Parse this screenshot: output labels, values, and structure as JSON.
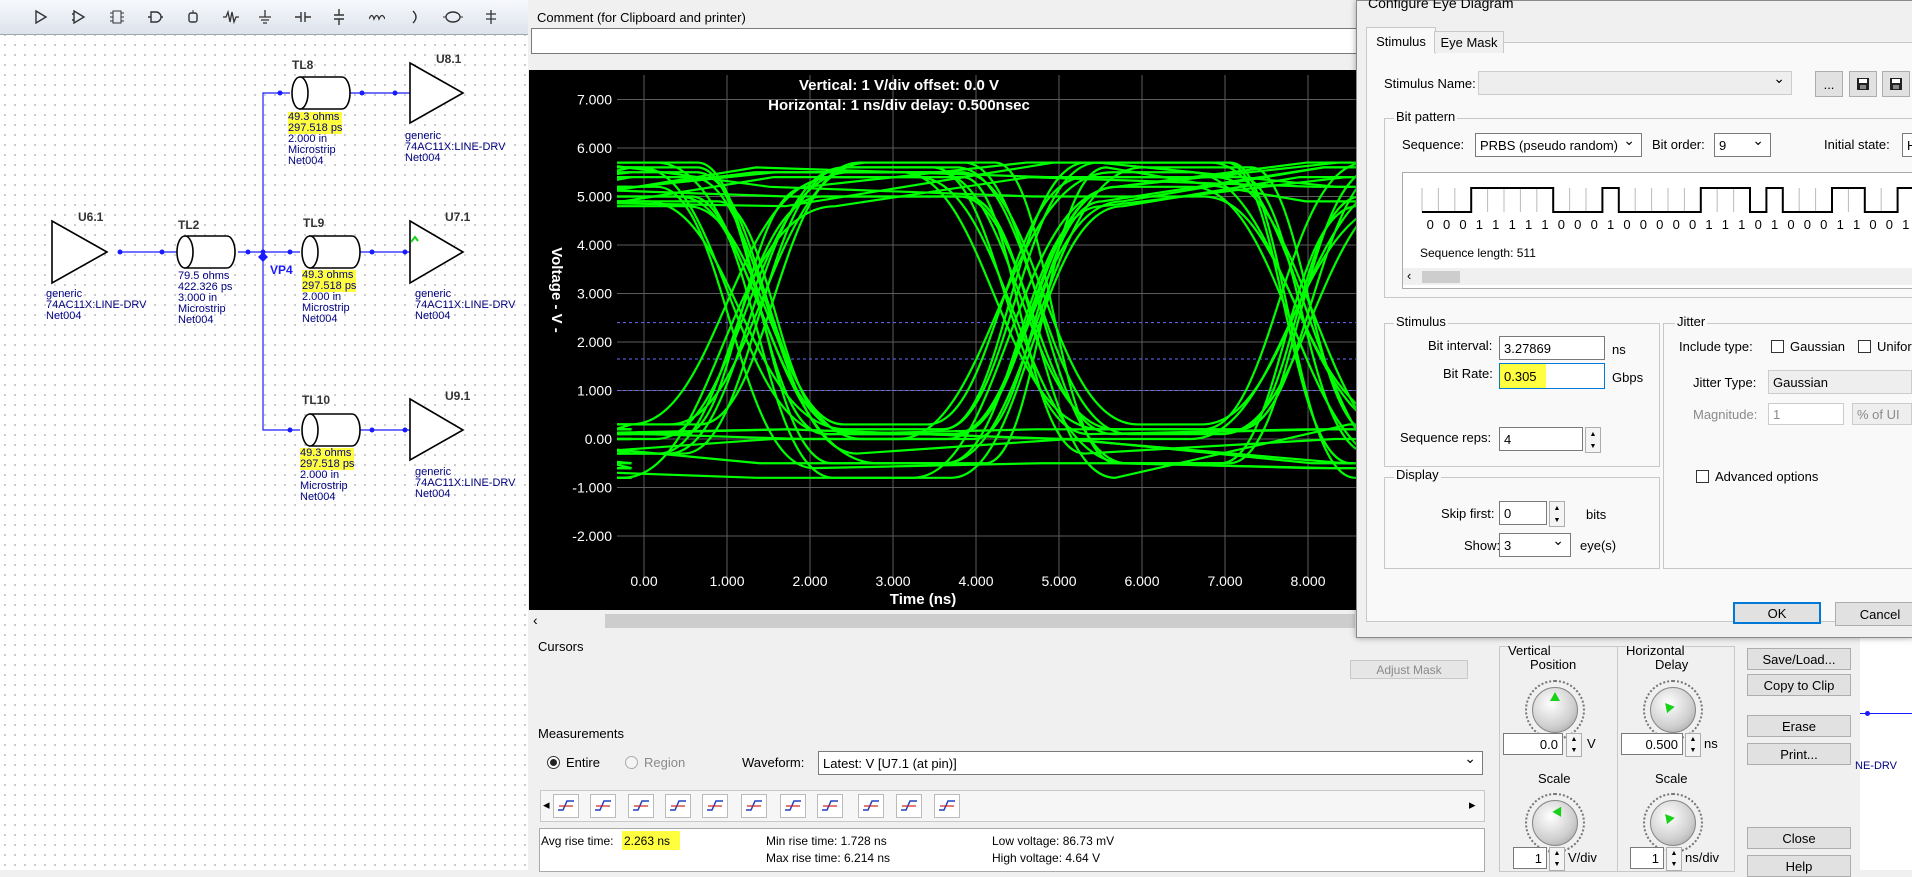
{
  "schematic": {
    "toolbar_icons": [
      "driver-icon",
      "buffer-icon",
      "ic-icon",
      "gate-icon",
      "probe-icon",
      "resistor-icon",
      "ground-icon",
      "capacitor-icon",
      "cap-v-icon",
      "inductor-icon",
      "diode-icon",
      "tline-icon",
      "pin-icon"
    ],
    "parts": [
      {
        "ref": "U6.1",
        "lines": [
          "generic",
          "74AC11X:LINE-DRV",
          "Net004"
        ]
      },
      {
        "ref": "TL2",
        "lines": [
          "79.5 ohms",
          "422.326 ps",
          "3.000 in",
          "Microstrip",
          "Net004"
        ]
      },
      {
        "ref": "TL8",
        "lines": [
          "49.3 ohms",
          "297.518 ps",
          "2.000 in",
          "Microstrip",
          "Net004"
        ]
      },
      {
        "ref": "TL9",
        "lines": [
          "49.3 ohms",
          "297.518 ps",
          "2.000 in",
          "Microstrip",
          "Net004"
        ]
      },
      {
        "ref": "TL10",
        "lines": [
          "49.3 ohms",
          "297.518 ps",
          "2.000 in",
          "Microstrip",
          "Net004"
        ]
      },
      {
        "ref": "U8.1",
        "lines": [
          "generic",
          "74AC11X:LINE-DRV",
          "Net004"
        ]
      },
      {
        "ref": "U7.1",
        "lines": [
          "generic",
          "74AC11X:LINE-DRV",
          "Net004"
        ]
      },
      {
        "ref": "U9.1",
        "lines": [
          "generic",
          "74AC11X:LINE-DRV",
          "Net004"
        ]
      }
    ],
    "vp_label": "VP4",
    "side_peek": "NE-DRV"
  },
  "eye_window": {
    "comment_label": "Comment (for Clipboard and printer)",
    "comment_value": "",
    "plot": {
      "header_line1": "Vertical: 1  V/div  offset: 0.0 V",
      "header_line2": "Horizontal: 1 ns/div  delay: 0.500nsec",
      "ylabel": "Voltage  - V -",
      "xlabel": "Time  (ns)",
      "y_ticks": [
        "7.000",
        "6.000",
        "5.000",
        "4.000",
        "3.000",
        "2.000",
        "1.000",
        "0.00",
        "-1.000",
        "-2.000"
      ],
      "x_ticks": [
        "0.00",
        "1.000",
        "2.000",
        "3.000",
        "4.000",
        "5.000",
        "6.000",
        "7.000",
        "8.000"
      ],
      "trace_color": "#00ff00",
      "background": "#000000"
    },
    "cursors": {
      "label": "Cursors",
      "adjust_mask": "Adjust Mask"
    },
    "measurements": {
      "label": "Measurements",
      "entire": "Entire",
      "region": "Region",
      "waveform_label": "Waveform:",
      "waveform_value": "Latest: V [U7.1 (at pin)]",
      "avg_rise_label": "Avg rise time:",
      "avg_rise_value": "2.263 ns",
      "min_rise": "Min rise time: 1.728 ns",
      "max_rise": "Max rise time: 6.214 ns",
      "low_voltage": "Low voltage: 86.73 mV",
      "high_voltage": "High voltage: 4.64 V"
    },
    "vertical": {
      "label1": "Vertical",
      "label2": "Position",
      "value": "0.0",
      "unit": "V",
      "scale_label": "Scale",
      "scale_value": "1",
      "scale_unit": "V/div"
    },
    "horizontal": {
      "label1": "Horizontal",
      "label2": "Delay",
      "value": "0.500",
      "unit": "ns",
      "scale_label": "Scale",
      "scale_value": "1",
      "scale_unit": "ns/div"
    },
    "buttons": {
      "save_load": "Save/Load...",
      "copy_clip": "Copy to Clip",
      "erase": "Erase",
      "print": "Print...",
      "close": "Close",
      "help": "Help"
    }
  },
  "dialog": {
    "title": "Configure Eye Diagram",
    "tabs": [
      "Stimulus",
      "Eye Mask"
    ],
    "stimulus_name_label": "Stimulus Name:",
    "stimulus_name_value": "",
    "browse_label": "...",
    "bit_pattern_label": "Bit pattern",
    "sequence_label": "Sequence:",
    "sequence_value": "PRBS (pseudo random)",
    "bit_order_label": "Bit order:",
    "bit_order_value": "9",
    "initial_state_label": "Initial state:",
    "initial_state_value": "H",
    "bits": "0 0 0 1 1 1 1 1 0 0 0 1 0 0 0 0 0 1 1 1 0 1 0 0 0 1 1 0 0 1 1 0",
    "bit_list": [
      0,
      0,
      0,
      1,
      1,
      1,
      1,
      1,
      0,
      0,
      0,
      1,
      0,
      0,
      0,
      0,
      0,
      1,
      1,
      1,
      0,
      1,
      0,
      0,
      0,
      1,
      1,
      0,
      0,
      1,
      1,
      0
    ],
    "sequence_length": "Sequence length: 511",
    "stimulus_group": "Stimulus",
    "bit_interval_label": "Bit interval:",
    "bit_interval_value": "3.27869",
    "bit_interval_unit": "ns",
    "bit_rate_label": "Bit Rate:",
    "bit_rate_value": "0.305",
    "bit_rate_unit": "Gbps",
    "seq_reps_label": "Sequence reps:",
    "seq_reps_value": "4",
    "display_group": "Display",
    "skip_first_label": "Skip first:",
    "skip_first_value": "0",
    "skip_first_unit": "bits",
    "show_label": "Show:",
    "show_value": "3",
    "show_unit": "eye(s)",
    "jitter_group": "Jitter",
    "include_type_label": "Include type:",
    "gaussian_label": "Gaussian",
    "uniform_label": "Unifor",
    "jitter_type_label": "Jitter Type:",
    "jitter_type_value": "Gaussian",
    "magnitude_label": "Magnitude:",
    "magnitude_value": "1",
    "magnitude_unit": "% of UI",
    "advanced_label": "Advanced options",
    "ok": "OK",
    "cancel": "Cancel",
    "highlight_color": "#ffff40"
  }
}
